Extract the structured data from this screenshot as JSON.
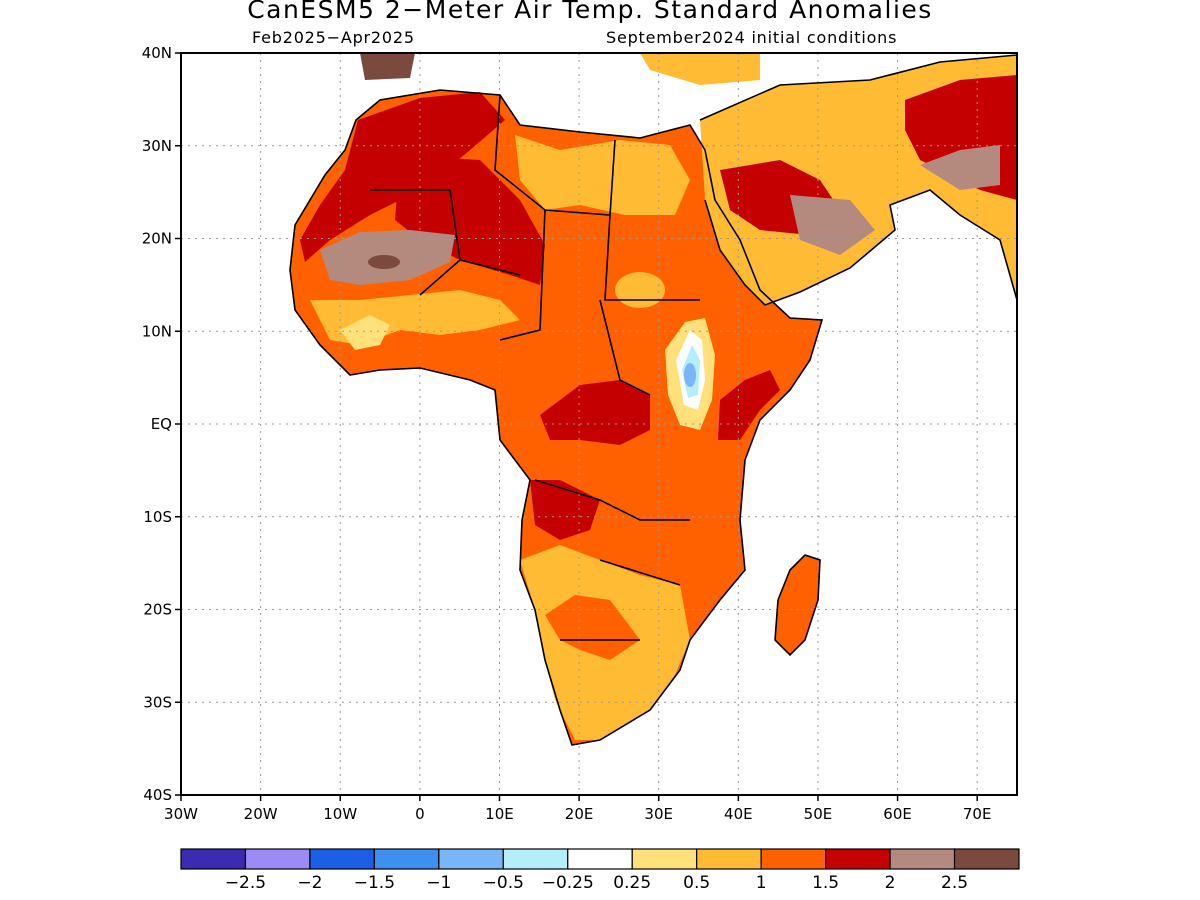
{
  "title": "CanESM5 2−Meter Air Temp. Standard Anomalies",
  "subtitle_left": "Feb2025−Apr2025",
  "subtitle_right": "September2024 initial conditions",
  "map": {
    "lon_range": [
      -30,
      75
    ],
    "lat_range": [
      -40,
      40
    ],
    "lat_ticks": [
      {
        "value": 40,
        "label": "40N"
      },
      {
        "value": 30,
        "label": "30N"
      },
      {
        "value": 20,
        "label": "20N"
      },
      {
        "value": 10,
        "label": "10N"
      },
      {
        "value": 0,
        "label": "EQ"
      },
      {
        "value": -10,
        "label": "10S"
      },
      {
        "value": -20,
        "label": "20S"
      },
      {
        "value": -30,
        "label": "30S"
      },
      {
        "value": -40,
        "label": "40S"
      }
    ],
    "lon_ticks": [
      {
        "value": -30,
        "label": "30W"
      },
      {
        "value": -20,
        "label": "20W"
      },
      {
        "value": -10,
        "label": "10W"
      },
      {
        "value": 0,
        "label": "0"
      },
      {
        "value": 10,
        "label": "10E"
      },
      {
        "value": 20,
        "label": "20E"
      },
      {
        "value": 30,
        "label": "30E"
      },
      {
        "value": 40,
        "label": "40E"
      },
      {
        "value": 50,
        "label": "50E"
      },
      {
        "value": 60,
        "label": "60E"
      },
      {
        "value": 70,
        "label": "70E"
      }
    ],
    "grid": true
  },
  "colorbar": {
    "colors": [
      "#3a2bb0",
      "#9c8af5",
      "#1c5fe6",
      "#3d8ff0",
      "#78b6f8",
      "#b4eefa",
      "#ffffff",
      "#ffe07a",
      "#ffbb33",
      "#ff6000",
      "#c40000",
      "#b48a7e",
      "#7a4a3e"
    ],
    "labels": [
      "−2.5",
      "−2",
      "−1.5",
      "−1",
      "−0.5",
      "−0.25",
      "0.25",
      "0.5",
      "1",
      "1.5",
      "2",
      "2.5"
    ]
  }
}
